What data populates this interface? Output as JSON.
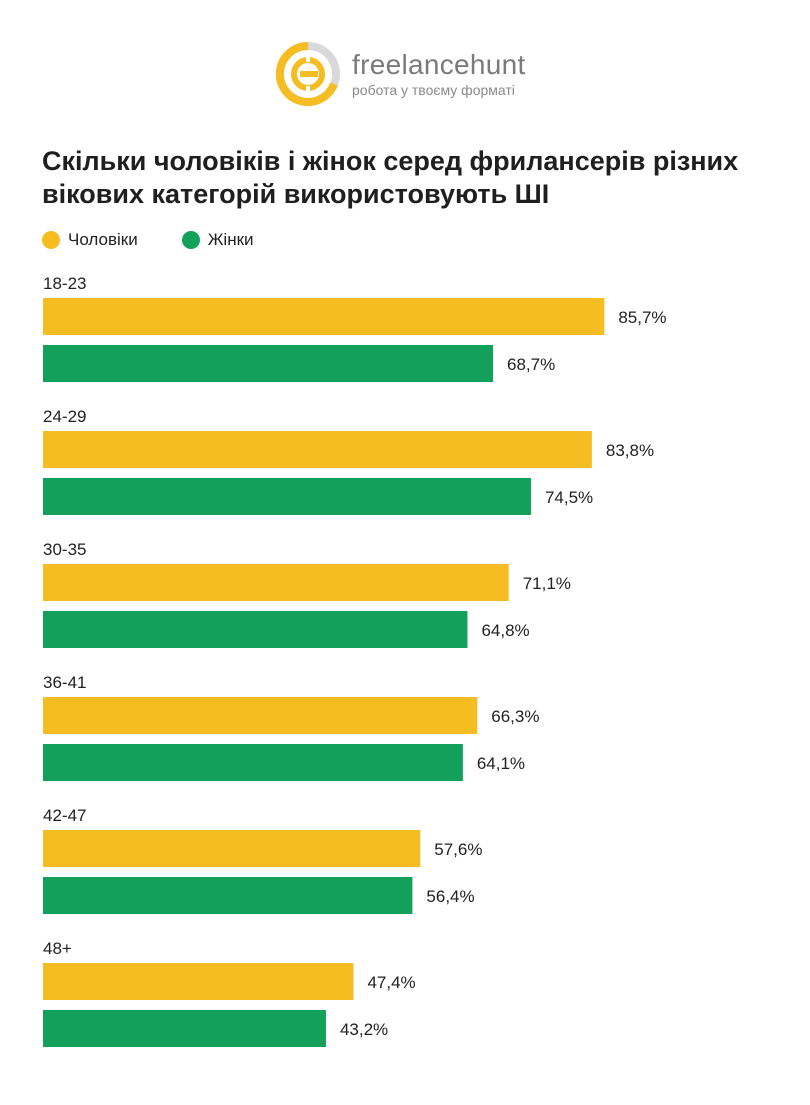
{
  "logo": {
    "name": "freelancehunt",
    "tagline": "робота у твоєму форматі"
  },
  "colors": {
    "men": "#f5bd22",
    "women": "#12a05a",
    "logo_yellow": "#f5bd22",
    "logo_grey": "#d9d9d9"
  },
  "chart_data": {
    "type": "bar",
    "orientation": "horizontal",
    "title": "Скільки чоловіків і жінок серед фрилансерів різних вікових категорій використовують ШІ",
    "categories": [
      "18-23",
      "24-29",
      "30-35",
      "36-41",
      "42-47",
      "48+"
    ],
    "series": [
      {
        "name": "Чоловіки",
        "values": [
          85.7,
          83.8,
          71.1,
          66.3,
          57.6,
          47.4
        ],
        "labels": [
          "85,7%",
          "83,8%",
          "71,1%",
          "66,3%",
          "57,6%",
          "47,4%"
        ]
      },
      {
        "name": "Жінки",
        "values": [
          68.7,
          74.5,
          64.8,
          64.1,
          56.4,
          43.2
        ],
        "labels": [
          "68,7%",
          "74,5%",
          "64,8%",
          "64,1%",
          "56,4%",
          "43,2%"
        ]
      }
    ],
    "xlim": [
      0,
      100
    ],
    "grid": false,
    "legend": "top-left"
  }
}
